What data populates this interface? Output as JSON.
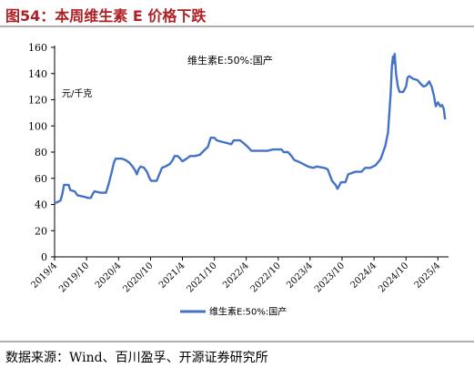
{
  "figure": {
    "title": "图54：本周维生素 E 价格下跌",
    "source": "数据来源：Wind、百川盈孚、开源证券研究所"
  },
  "chart_data": {
    "type": "line",
    "chart_label": "维生素E:50%:国产",
    "ylabel": "元/千克",
    "ylim": [
      0,
      160
    ],
    "yticks": [
      0,
      20,
      40,
      60,
      80,
      100,
      120,
      140,
      160
    ],
    "x_tick_labels": [
      "2019/4",
      "2019/10",
      "2020/4",
      "2020/10",
      "2021/4",
      "2021/10",
      "2022/4",
      "2022/10",
      "2023/4",
      "2023/10",
      "2024/4",
      "2024/10",
      "2025/4"
    ],
    "grid": false,
    "legend_position": "bottom",
    "series": [
      {
        "name": "维生素E:50%:国产",
        "color": "#4472c4",
        "points": [
          [
            "2019-04-01",
            41
          ],
          [
            "2019-04-20",
            42
          ],
          [
            "2019-05-05",
            43
          ],
          [
            "2019-05-15",
            48
          ],
          [
            "2019-05-25",
            55
          ],
          [
            "2019-06-20",
            55
          ],
          [
            "2019-06-30",
            51
          ],
          [
            "2019-07-25",
            50
          ],
          [
            "2019-08-10",
            47
          ],
          [
            "2019-09-15",
            46
          ],
          [
            "2019-10-10",
            45
          ],
          [
            "2019-10-25",
            45
          ],
          [
            "2019-11-05",
            48
          ],
          [
            "2019-11-15",
            50
          ],
          [
            "2019-12-20",
            49
          ],
          [
            "2020-01-20",
            49
          ],
          [
            "2020-02-05",
            56
          ],
          [
            "2020-02-20",
            64
          ],
          [
            "2020-03-05",
            72
          ],
          [
            "2020-03-15",
            75
          ],
          [
            "2020-04-20",
            75
          ],
          [
            "2020-05-10",
            74
          ],
          [
            "2020-06-01",
            72
          ],
          [
            "2020-06-20",
            69
          ],
          [
            "2020-07-05",
            66
          ],
          [
            "2020-07-15",
            63
          ],
          [
            "2020-07-25",
            67
          ],
          [
            "2020-08-05",
            69
          ],
          [
            "2020-08-25",
            68
          ],
          [
            "2020-09-10",
            65
          ],
          [
            "2020-09-25",
            60
          ],
          [
            "2020-10-05",
            58
          ],
          [
            "2020-11-05",
            58
          ],
          [
            "2020-11-20",
            63
          ],
          [
            "2020-12-05",
            68
          ],
          [
            "2020-12-25",
            69
          ],
          [
            "2021-01-20",
            71
          ],
          [
            "2021-02-05",
            74
          ],
          [
            "2021-02-15",
            77
          ],
          [
            "2021-03-05",
            77
          ],
          [
            "2021-03-20",
            75
          ],
          [
            "2021-04-01",
            73
          ],
          [
            "2021-04-25",
            75
          ],
          [
            "2021-05-15",
            77
          ],
          [
            "2021-06-10",
            77
          ],
          [
            "2021-07-10",
            78
          ],
          [
            "2021-08-01",
            81
          ],
          [
            "2021-08-25",
            84
          ],
          [
            "2021-09-10",
            91
          ],
          [
            "2021-09-30",
            91
          ],
          [
            "2021-10-15",
            89
          ],
          [
            "2021-11-10",
            88
          ],
          [
            "2021-12-10",
            87
          ],
          [
            "2022-01-05",
            86
          ],
          [
            "2022-01-20",
            89
          ],
          [
            "2022-02-25",
            89
          ],
          [
            "2022-03-15",
            87
          ],
          [
            "2022-04-10",
            84
          ],
          [
            "2022-05-01",
            81
          ],
          [
            "2022-06-20",
            81
          ],
          [
            "2022-08-01",
            81
          ],
          [
            "2022-09-01",
            82
          ],
          [
            "2022-10-20",
            82
          ],
          [
            "2022-11-01",
            80
          ],
          [
            "2022-11-25",
            80
          ],
          [
            "2022-12-10",
            78
          ],
          [
            "2023-01-01",
            74
          ],
          [
            "2023-01-20",
            73
          ],
          [
            "2023-02-20",
            71
          ],
          [
            "2023-03-20",
            69
          ],
          [
            "2023-04-20",
            68
          ],
          [
            "2023-05-10",
            69
          ],
          [
            "2023-06-20",
            68
          ],
          [
            "2023-07-10",
            67
          ],
          [
            "2023-07-25",
            62
          ],
          [
            "2023-08-05",
            58
          ],
          [
            "2023-08-25",
            55
          ],
          [
            "2023-09-05",
            52
          ],
          [
            "2023-09-25",
            57
          ],
          [
            "2023-10-20",
            57
          ],
          [
            "2023-11-05",
            63
          ],
          [
            "2023-12-15",
            65
          ],
          [
            "2024-01-20",
            65
          ],
          [
            "2024-02-10",
            68
          ],
          [
            "2024-03-10",
            68
          ],
          [
            "2024-04-10",
            70
          ],
          [
            "2024-05-10",
            75
          ],
          [
            "2024-06-05",
            85
          ],
          [
            "2024-06-20",
            95
          ],
          [
            "2024-07-05",
            125
          ],
          [
            "2024-07-12",
            145
          ],
          [
            "2024-07-18",
            153
          ],
          [
            "2024-07-22",
            148
          ],
          [
            "2024-07-28",
            155
          ],
          [
            "2024-08-05",
            140
          ],
          [
            "2024-08-15",
            130
          ],
          [
            "2024-08-25",
            126
          ],
          [
            "2024-09-15",
            126
          ],
          [
            "2024-10-01",
            130
          ],
          [
            "2024-10-10",
            137
          ],
          [
            "2024-10-20",
            138
          ],
          [
            "2024-11-10",
            136
          ],
          [
            "2024-12-05",
            135
          ],
          [
            "2024-12-25",
            132
          ],
          [
            "2025-01-10",
            130
          ],
          [
            "2025-01-25",
            131
          ],
          [
            "2025-02-10",
            134
          ],
          [
            "2025-02-25",
            130
          ],
          [
            "2025-03-10",
            123
          ],
          [
            "2025-03-20",
            115
          ],
          [
            "2025-04-01",
            118
          ],
          [
            "2025-04-15",
            115
          ],
          [
            "2025-04-25",
            116
          ],
          [
            "2025-05-05",
            113
          ],
          [
            "2025-05-12",
            105
          ]
        ]
      }
    ]
  }
}
